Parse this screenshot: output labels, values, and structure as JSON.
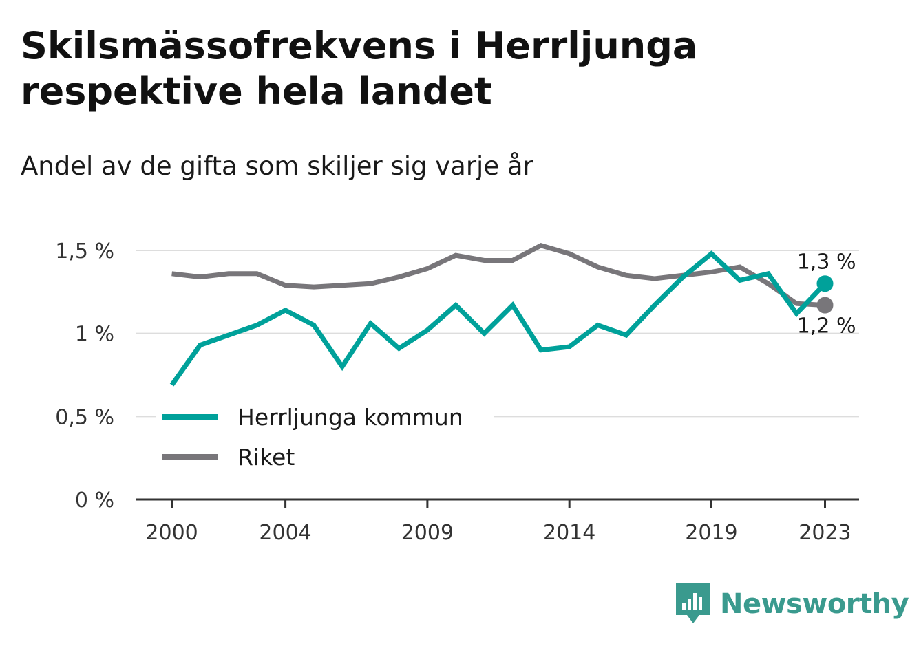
{
  "title": "Skilsmässofrekvens i Herrljunga respektive hela landet",
  "subtitle": "Andel av de gifta som skiljer sig varje år",
  "brand": "Newsworthy",
  "colors": {
    "herrljunga": "#00a19a",
    "riket": "#78767a",
    "grid": "#dddddd",
    "axis": "#333333",
    "brand": "#3a9a8e"
  },
  "chart_data": {
    "type": "line",
    "x": [
      2000,
      2001,
      2002,
      2003,
      2004,
      2005,
      2006,
      2007,
      2008,
      2009,
      2010,
      2011,
      2012,
      2013,
      2014,
      2015,
      2016,
      2017,
      2018,
      2019,
      2020,
      2021,
      2022,
      2023
    ],
    "x_ticks": [
      2000,
      2004,
      2009,
      2014,
      2019,
      2023
    ],
    "x_tick_labels": [
      "2000",
      "2004",
      "2009",
      "2014",
      "2019",
      "2023"
    ],
    "xlim": [
      1998.75,
      2024.2
    ],
    "ylim": [
      0,
      1.5
    ],
    "y_ticks": [
      0,
      0.5,
      1,
      1.5
    ],
    "y_tick_labels": [
      "0 %",
      "0,5 %",
      "1 %",
      "1,5 %"
    ],
    "grid": true,
    "legend_position": "bottom-left",
    "series": [
      {
        "name": "Herrljunga kommun",
        "color": "#00a19a",
        "values": [
          0.69,
          0.93,
          0.99,
          1.05,
          1.14,
          1.05,
          0.8,
          1.06,
          0.91,
          1.02,
          1.17,
          1.0,
          1.17,
          0.9,
          0.92,
          1.05,
          0.99,
          1.17,
          1.34,
          1.48,
          1.32,
          1.36,
          1.12,
          1.3
        ],
        "end_label": "1,3 %"
      },
      {
        "name": "Riket",
        "color": "#78767a",
        "values": [
          1.36,
          1.34,
          1.36,
          1.36,
          1.29,
          1.28,
          1.29,
          1.3,
          1.34,
          1.39,
          1.47,
          1.44,
          1.44,
          1.53,
          1.48,
          1.4,
          1.35,
          1.33,
          1.35,
          1.37,
          1.4,
          1.3,
          1.18,
          1.17
        ],
        "end_label": "1,2 %"
      }
    ]
  }
}
